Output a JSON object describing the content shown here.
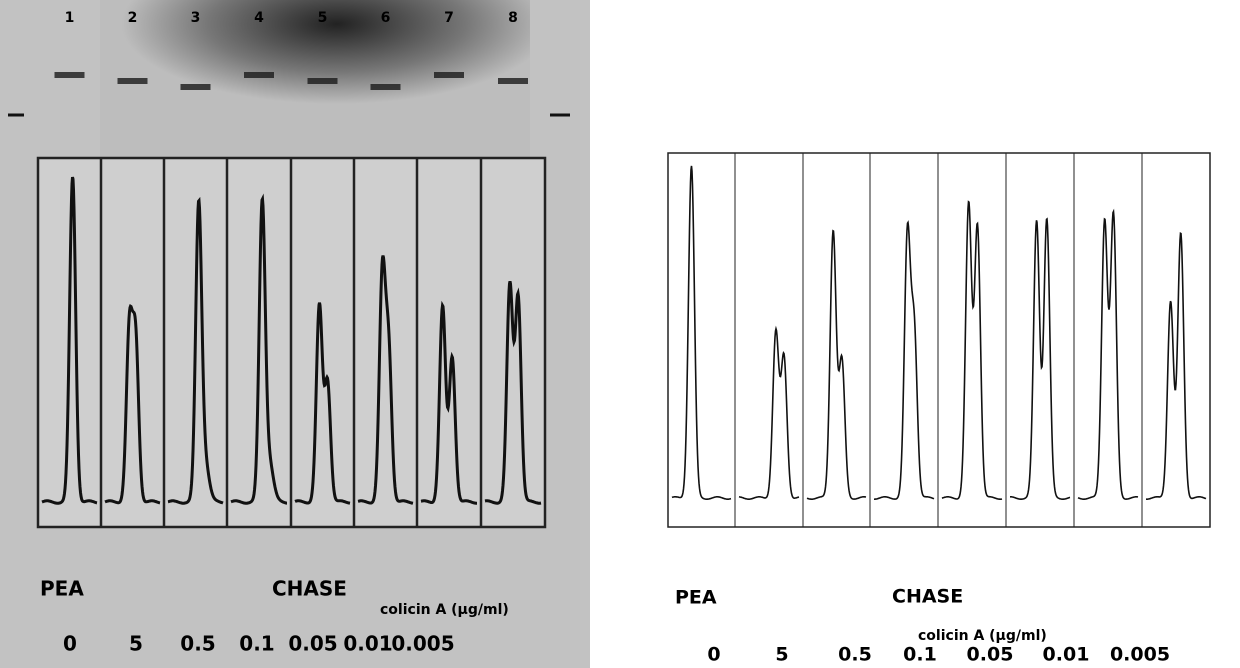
{
  "left_panel": {
    "lane_numbers": [
      "1",
      "2",
      "3",
      "4",
      "5",
      "6",
      "7",
      "8"
    ],
    "pea": "PEA",
    "chase": "CHASE",
    "colicin": "colicin A (μg/ml)",
    "concentrations": [
      "0",
      "5",
      "0.5",
      "0.1",
      "0.05",
      "0.01",
      "0.005"
    ]
  },
  "right_panel": {
    "pea": "PEA",
    "chase": "CHASE",
    "colicin": "colicin A (μg/ml)",
    "concentrations": [
      "0",
      "5",
      "0.5",
      "0.1",
      "0.05",
      "0.01",
      "0.005"
    ]
  }
}
